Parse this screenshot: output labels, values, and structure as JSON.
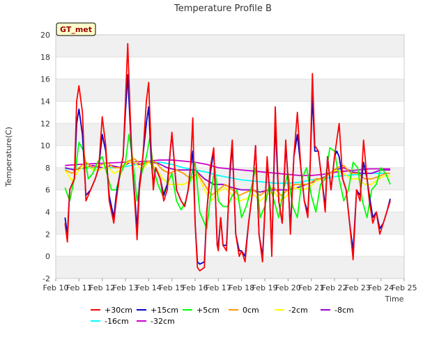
{
  "chart_data": {
    "type": "line",
    "title": "Temperature Profile B",
    "badge": "GT_met",
    "xlabel": "Time",
    "ylabel": "Temperature(C)",
    "ylim": [
      -2,
      20
    ],
    "yticks": [
      -2,
      0,
      2,
      4,
      6,
      8,
      10,
      12,
      14,
      16,
      18,
      20
    ],
    "xlim": [
      10,
      25
    ],
    "xticks": [
      10,
      11,
      12,
      13,
      14,
      15,
      16,
      17,
      18,
      19,
      20,
      21,
      22,
      23,
      24,
      25
    ],
    "xtick_labels": [
      "Feb 10",
      "Feb 11",
      "Feb 12",
      "Feb 13",
      "Feb 14",
      "Feb 15",
      "Feb 16",
      "Feb 17",
      "Feb 18",
      "Feb 19",
      "Feb 20",
      "Feb 21",
      "Feb 22",
      "Feb 23",
      "Feb 24",
      "Feb 25"
    ],
    "grid": "horizontal bands",
    "legend_position": "bottom",
    "series": [
      {
        "name": "+30cm",
        "color": "#ff0000",
        "x": [
          10.4,
          10.5,
          10.6,
          10.8,
          10.9,
          11.0,
          11.15,
          11.3,
          11.5,
          11.7,
          11.85,
          12.0,
          12.15,
          12.3,
          12.5,
          12.6,
          12.8,
          12.9,
          13.0,
          13.1,
          13.2,
          13.3,
          13.4,
          13.5,
          13.6,
          13.75,
          13.9,
          14.0,
          14.1,
          14.2,
          14.3,
          14.5,
          14.65,
          14.8,
          14.95,
          15.0,
          15.2,
          15.4,
          15.55,
          15.7,
          15.8,
          15.9,
          16.0,
          16.1,
          16.2,
          16.4,
          16.5,
          16.65,
          16.8,
          16.95,
          17.0,
          17.1,
          17.2,
          17.35,
          17.5,
          17.6,
          17.75,
          17.9,
          18.0,
          18.15,
          18.3,
          18.45,
          18.6,
          18.75,
          18.9,
          19.0,
          19.1,
          19.2,
          19.3,
          19.45,
          19.6,
          19.75,
          19.9,
          20.0,
          20.1,
          20.25,
          20.4,
          20.55,
          20.7,
          20.85,
          20.95,
          21.05,
          21.15,
          21.3,
          21.45,
          21.6,
          21.7,
          21.85,
          22.0,
          22.1,
          22.2,
          22.35,
          22.5,
          22.65,
          22.8,
          22.95,
          23.1,
          23.25,
          23.4,
          23.5,
          23.65,
          23.8,
          23.95,
          24.1,
          24.25,
          24.4
        ],
        "values": [
          3.0,
          1.3,
          6.0,
          7.0,
          14.0,
          15.4,
          13.0,
          5.0,
          6.0,
          7.0,
          8.0,
          12.6,
          10.0,
          5.0,
          3.0,
          5.0,
          8.0,
          9.0,
          14.0,
          19.2,
          13.0,
          8.0,
          5.0,
          1.5,
          6.0,
          9.0,
          14.0,
          15.7,
          10.0,
          6.0,
          8.0,
          7.0,
          5.0,
          6.0,
          10.0,
          11.2,
          6.0,
          5.0,
          4.5,
          6.0,
          8.0,
          12.5,
          3.0,
          -1.0,
          -1.3,
          -1.0,
          4.0,
          8.0,
          9.8,
          1.0,
          0.5,
          3.5,
          1.0,
          0.5,
          8.0,
          10.5,
          2.0,
          0.0,
          0.5,
          -0.5,
          3.0,
          5.5,
          10.0,
          2.0,
          -0.5,
          4.0,
          9.0,
          6.0,
          0.0,
          13.5,
          5.0,
          3.0,
          10.5,
          7.0,
          2.0,
          9.0,
          13.0,
          8.0,
          5.0,
          3.5,
          8.0,
          16.5,
          10.0,
          9.5,
          7.0,
          4.0,
          9.0,
          6.0,
          9.0,
          10.5,
          12.0,
          7.0,
          6.0,
          3.0,
          -0.3,
          6.0,
          5.0,
          10.5,
          7.0,
          5.0,
          3.0,
          4.0,
          2.0,
          3.0,
          4.0,
          5.0
        ]
      },
      {
        "name": "+15cm",
        "color": "#0000cc",
        "x": [
          10.4,
          10.5,
          10.6,
          10.8,
          10.9,
          11.0,
          11.15,
          11.3,
          11.5,
          11.7,
          11.85,
          12.0,
          12.15,
          12.3,
          12.5,
          12.6,
          12.8,
          12.9,
          13.0,
          13.1,
          13.2,
          13.3,
          13.4,
          13.5,
          13.6,
          13.75,
          13.9,
          14.0,
          14.1,
          14.2,
          14.3,
          14.5,
          14.65,
          14.8,
          14.95,
          15.0,
          15.2,
          15.4,
          15.55,
          15.7,
          15.8,
          15.9,
          16.0,
          16.1,
          16.2,
          16.4,
          16.5,
          16.65,
          16.8,
          16.95,
          17.0,
          17.1,
          17.2,
          17.35,
          17.5,
          17.6,
          17.75,
          17.9,
          18.0,
          18.15,
          18.3,
          18.45,
          18.6,
          18.75,
          18.9,
          19.0,
          19.1,
          19.2,
          19.3,
          19.45,
          19.6,
          19.75,
          19.9,
          20.0,
          20.1,
          20.25,
          20.4,
          20.55,
          20.7,
          20.85,
          20.95,
          21.05,
          21.15,
          21.3,
          21.45,
          21.6,
          21.7,
          21.85,
          22.0,
          22.1,
          22.2,
          22.35,
          22.5,
          22.65,
          22.8,
          22.95,
          23.1,
          23.25,
          23.4,
          23.5,
          23.65,
          23.8,
          23.95,
          24.1,
          24.25,
          24.4
        ],
        "values": [
          3.5,
          2.0,
          6.0,
          7.0,
          12.0,
          13.3,
          11.0,
          5.5,
          6.0,
          7.0,
          8.0,
          11.0,
          9.5,
          5.5,
          3.5,
          5.5,
          8.0,
          9.0,
          13.0,
          16.4,
          12.0,
          8.0,
          5.5,
          2.5,
          6.5,
          9.0,
          12.0,
          13.5,
          9.0,
          6.5,
          8.0,
          7.0,
          5.5,
          6.5,
          10.0,
          11.0,
          6.0,
          5.0,
          4.5,
          6.0,
          8.0,
          9.5,
          3.0,
          -0.5,
          -0.7,
          -0.5,
          4.0,
          7.5,
          9.5,
          1.0,
          1.0,
          3.5,
          1.0,
          1.0,
          7.5,
          10.0,
          2.0,
          0.5,
          0.5,
          0.0,
          3.0,
          5.5,
          10.0,
          2.0,
          0.0,
          4.0,
          8.5,
          6.0,
          0.5,
          12.0,
          5.0,
          3.0,
          10.0,
          7.0,
          2.5,
          9.0,
          11.0,
          8.0,
          5.0,
          4.0,
          8.0,
          14.5,
          9.5,
          9.5,
          7.0,
          4.5,
          9.0,
          6.0,
          9.0,
          9.5,
          9.0,
          7.0,
          6.0,
          3.0,
          0.5,
          6.0,
          5.5,
          8.5,
          7.0,
          5.5,
          3.5,
          4.0,
          2.5,
          3.0,
          4.0,
          5.2
        ]
      },
      {
        "name": "+5cm",
        "color": "#00ff00",
        "x": [
          10.4,
          10.6,
          10.8,
          11.0,
          11.2,
          11.4,
          11.6,
          11.8,
          12.0,
          12.2,
          12.4,
          12.6,
          12.8,
          13.0,
          13.15,
          13.3,
          13.5,
          13.7,
          13.9,
          14.05,
          14.2,
          14.4,
          14.6,
          14.8,
          15.0,
          15.2,
          15.4,
          15.6,
          15.8,
          16.0,
          16.2,
          16.5,
          16.7,
          16.85,
          17.0,
          17.2,
          17.4,
          17.6,
          17.8,
          18.0,
          18.2,
          18.4,
          18.6,
          18.8,
          19.0,
          19.2,
          19.4,
          19.6,
          19.8,
          20.0,
          20.2,
          20.4,
          20.6,
          20.8,
          21.0,
          21.2,
          21.4,
          21.6,
          21.8,
          22.0,
          22.2,
          22.4,
          22.6,
          22.8,
          23.0,
          23.2,
          23.4,
          23.6,
          23.8,
          24.0,
          24.2,
          24.4
        ],
        "values": [
          6.2,
          5.0,
          7.0,
          10.3,
          9.5,
          7.0,
          7.5,
          8.5,
          9.0,
          7.5,
          6.0,
          6.0,
          7.5,
          8.5,
          11.0,
          9.0,
          5.0,
          7.5,
          9.0,
          10.7,
          8.0,
          6.5,
          5.5,
          6.5,
          7.5,
          5.0,
          4.2,
          5.0,
          7.0,
          8.5,
          4.0,
          2.5,
          6.0,
          8.0,
          5.0,
          4.5,
          4.5,
          5.5,
          6.0,
          3.5,
          4.5,
          6.0,
          8.0,
          3.5,
          4.5,
          6.5,
          5.0,
          3.5,
          6.0,
          7.5,
          4.5,
          3.5,
          7.0,
          8.0,
          5.5,
          4.0,
          6.5,
          7.0,
          9.8,
          9.5,
          7.0,
          5.0,
          6.0,
          8.5,
          8.0,
          5.0,
          3.5,
          6.0,
          6.5,
          8.0,
          7.5,
          6.5
        ]
      },
      {
        "name": "0cm",
        "color": "#ff9900",
        "x": [
          10.4,
          10.7,
          11.0,
          11.3,
          11.6,
          11.9,
          12.2,
          12.5,
          12.8,
          13.1,
          13.4,
          13.7,
          14.0,
          14.3,
          14.6,
          14.9,
          15.2,
          15.5,
          15.8,
          16.1,
          16.4,
          16.7,
          17.0,
          17.3,
          17.6,
          17.9,
          18.2,
          18.5,
          18.8,
          19.1,
          19.4,
          19.7,
          20.0,
          20.3,
          20.6,
          20.9,
          21.2,
          21.5,
          21.8,
          22.1,
          22.4,
          22.7,
          23.0,
          23.3,
          23.6,
          23.9,
          24.2,
          24.4
        ],
        "values": [
          7.8,
          7.5,
          8.0,
          8.5,
          8.0,
          8.2,
          8.5,
          8.0,
          8.0,
          8.6,
          8.8,
          8.2,
          8.6,
          8.5,
          7.8,
          7.5,
          7.8,
          7.5,
          7.0,
          7.5,
          6.5,
          5.5,
          6.0,
          6.5,
          6.0,
          5.5,
          5.8,
          6.0,
          5.5,
          6.0,
          6.2,
          5.5,
          6.0,
          6.5,
          6.5,
          6.5,
          7.0,
          7.0,
          7.5,
          8.0,
          8.2,
          7.5,
          7.5,
          7.0,
          7.0,
          7.2,
          7.5,
          7.5
        ]
      },
      {
        "name": "-2cm",
        "color": "#ffff00",
        "x": [
          10.4,
          10.7,
          11.0,
          11.3,
          11.6,
          11.9,
          12.2,
          12.5,
          12.8,
          13.1,
          13.4,
          13.7,
          14.0,
          14.3,
          14.6,
          14.9,
          15.2,
          15.5,
          15.8,
          16.1,
          16.4,
          16.7,
          17.0,
          17.3,
          17.6,
          17.9,
          18.2,
          18.5,
          18.8,
          19.1,
          19.4,
          19.7,
          20.0,
          20.3,
          20.6,
          20.9,
          21.2,
          21.5,
          21.8,
          22.1,
          22.4,
          22.7,
          23.0,
          23.3,
          23.6,
          23.9,
          24.2,
          24.4
        ],
        "values": [
          7.8,
          6.8,
          7.8,
          8.2,
          7.8,
          7.8,
          8.2,
          7.5,
          7.8,
          8.5,
          8.5,
          7.8,
          8.5,
          8.0,
          7.0,
          6.5,
          6.5,
          6.5,
          6.8,
          7.5,
          6.0,
          5.0,
          5.8,
          6.2,
          5.5,
          5.0,
          5.2,
          5.6,
          5.0,
          5.6,
          5.8,
          5.0,
          5.6,
          6.2,
          6.0,
          6.2,
          6.8,
          7.0,
          7.5,
          7.8,
          7.5,
          7.0,
          7.0,
          6.5,
          6.5,
          7.0,
          7.3,
          7.2
        ]
      },
      {
        "name": "-8cm",
        "color": "#9900cc",
        "x": [
          10.4,
          10.8,
          11.2,
          11.6,
          12.0,
          12.4,
          12.8,
          13.2,
          13.6,
          14.0,
          14.4,
          14.8,
          15.2,
          15.6,
          16.0,
          16.4,
          16.8,
          17.2,
          17.6,
          18.0,
          18.4,
          18.8,
          19.2,
          19.6,
          20.0,
          20.4,
          20.8,
          21.2,
          21.6,
          22.0,
          22.4,
          22.8,
          23.2,
          23.6,
          24.0,
          24.4
        ],
        "values": [
          8.0,
          7.8,
          8.0,
          8.2,
          8.0,
          8.2,
          8.0,
          8.5,
          8.3,
          8.5,
          8.4,
          8.0,
          7.8,
          7.8,
          7.8,
          7.0,
          6.5,
          6.5,
          6.2,
          6.0,
          6.0,
          5.8,
          6.0,
          6.0,
          6.0,
          6.2,
          6.5,
          6.8,
          7.2,
          7.8,
          8.0,
          7.6,
          7.5,
          7.5,
          7.8,
          7.8
        ]
      },
      {
        "name": "-16cm",
        "color": "#00ffff",
        "x": [
          10.4,
          11.0,
          11.5,
          12.0,
          12.5,
          13.0,
          13.5,
          14.0,
          14.5,
          15.0,
          15.5,
          16.0,
          16.5,
          17.0,
          17.5,
          18.0,
          18.5,
          19.0,
          19.5,
          20.0,
          20.5,
          21.0,
          21.5,
          22.0,
          22.5,
          23.0,
          23.5,
          24.0,
          24.4
        ],
        "values": [
          7.9,
          7.9,
          8.0,
          8.0,
          8.0,
          8.1,
          8.3,
          8.5,
          8.5,
          8.3,
          8.0,
          7.8,
          7.6,
          7.3,
          7.1,
          6.9,
          6.8,
          6.7,
          6.6,
          6.6,
          6.7,
          6.9,
          7.0,
          7.2,
          7.3,
          7.4,
          7.5,
          7.5,
          7.5
        ]
      },
      {
        "name": "-32cm",
        "color": "#cc00cc",
        "x": [
          10.4,
          11.0,
          12.0,
          13.0,
          14.0,
          14.5,
          15.0,
          15.5,
          16.0,
          16.5,
          17.0,
          17.5,
          18.0,
          18.5,
          19.0,
          19.5,
          20.0,
          20.5,
          21.0,
          21.5,
          22.0,
          22.5,
          23.0,
          23.5,
          24.0,
          24.4
        ],
        "values": [
          8.2,
          8.3,
          8.4,
          8.5,
          8.6,
          8.7,
          8.7,
          8.6,
          8.5,
          8.3,
          8.0,
          7.9,
          7.8,
          7.7,
          7.6,
          7.5,
          7.4,
          7.3,
          7.3,
          7.4,
          7.6,
          7.7,
          7.8,
          7.9,
          7.9,
          7.9
        ]
      }
    ]
  }
}
